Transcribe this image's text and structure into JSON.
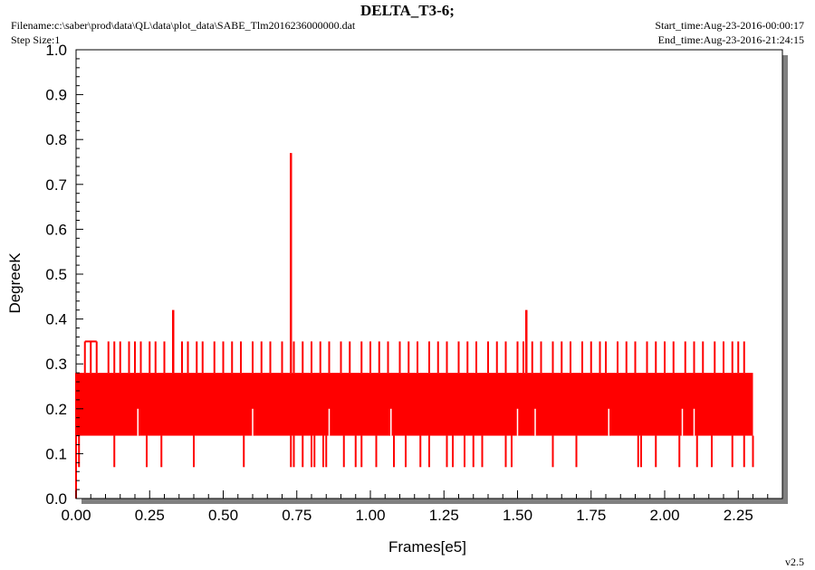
{
  "header": {
    "title": "DELTA_T3-6;",
    "filename": "Filename:c:\\saber\\prod\\data\\QL\\data\\plot_data\\SABE_Tlm2016236000000.dat",
    "step_size": "Step Size:1",
    "start_time": "Start_time:Aug-23-2016-00:00:17",
    "end_time": "End_time:Aug-23-2016-21:24:15",
    "version": "v2.5"
  },
  "colors": {
    "series": "#ff0000",
    "axis": "#000000",
    "shadow": "#808080"
  },
  "chart_data": {
    "type": "line",
    "title": "DELTA_T3-6;",
    "xlabel": "Frames[e5]",
    "ylabel": "DegreeK",
    "xlim": [
      0,
      2.4
    ],
    "ylim": [
      0,
      1.0
    ],
    "xticks": [
      "0.00",
      "0.25",
      "0.50",
      "0.75",
      "1.00",
      "1.25",
      "1.50",
      "1.75",
      "2.00",
      "2.25"
    ],
    "yticks": [
      "0.0",
      "0.1",
      "0.2",
      "0.3",
      "0.4",
      "0.5",
      "0.6",
      "0.7",
      "0.8",
      "0.9",
      "1.0"
    ],
    "grid": false,
    "series": [
      {
        "band_low": 0.14,
        "band_high": 0.28,
        "x_end": 2.3,
        "spikes_x": [
          0.0,
          0.73,
          0.33,
          1.53
        ],
        "spikes_y": [
          0.0,
          0.77,
          0.42,
          0.42
        ],
        "high_x": [
          0.03,
          0.05,
          0.07,
          0.11,
          0.13,
          0.15,
          0.18,
          0.2,
          0.22,
          0.25,
          0.27,
          0.3,
          0.33,
          0.36,
          0.38,
          0.41,
          0.43,
          0.47,
          0.5,
          0.53,
          0.56,
          0.6,
          0.63,
          0.66,
          0.7,
          0.74,
          0.77,
          0.8,
          0.83,
          0.86,
          0.9,
          0.93,
          0.97,
          1.0,
          1.03,
          1.06,
          1.1,
          1.13,
          1.16,
          1.2,
          1.23,
          1.26,
          1.3,
          1.33,
          1.36,
          1.4,
          1.43,
          1.46,
          1.5,
          1.52,
          1.55,
          1.58,
          1.62,
          1.65,
          1.68,
          1.72,
          1.75,
          1.78,
          1.8,
          1.84,
          1.87,
          1.9,
          1.94,
          1.97,
          2.0,
          2.03,
          2.07,
          2.1,
          2.13,
          2.17,
          2.2,
          2.23,
          2.25,
          2.27
        ],
        "low_x": [
          0.01,
          0.13,
          0.24,
          0.29,
          0.4,
          0.57,
          0.73,
          0.74,
          0.77,
          0.8,
          0.81,
          0.84,
          0.85,
          0.91,
          0.95,
          0.97,
          1.02,
          1.08,
          1.12,
          1.17,
          1.2,
          1.26,
          1.28,
          1.32,
          1.35,
          1.38,
          1.46,
          1.48,
          1.62,
          1.7,
          1.91,
          1.92,
          1.97,
          2.05,
          2.11,
          2.16,
          2.23,
          2.27,
          2.3
        ],
        "mid_low_x": [
          0.21,
          0.6,
          0.86,
          1.07,
          1.5,
          1.56,
          1.81,
          2.06,
          2.1
        ],
        "mid_low_y": 0.2
      }
    ]
  }
}
